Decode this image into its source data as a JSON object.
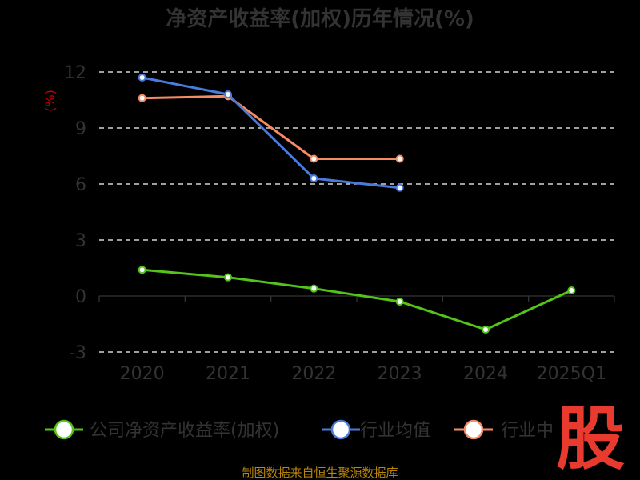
{
  "chart_data": {
    "type": "line",
    "title": "净资产收益率(加权)历年情况(%)",
    "ylabel": "(%)",
    "categories": [
      "2020",
      "2021",
      "2022",
      "2023",
      "2024",
      "2025Q1"
    ],
    "yticks": [
      "12",
      "9",
      "6",
      "3",
      "0",
      "-3"
    ],
    "ylim": [
      -3,
      12
    ],
    "grid": true,
    "legend_position": "bottom",
    "series": [
      {
        "name": "公司净资产收益率(加权)",
        "color": "#52c41a",
        "values": [
          1.4,
          1.0,
          0.4,
          -0.3,
          -1.8,
          0.3
        ]
      },
      {
        "name": "行业均值",
        "color": "#4a7bdc",
        "values": [
          11.7,
          10.8,
          6.3,
          5.8,
          null,
          null
        ]
      },
      {
        "name": "行业中位数",
        "color": "#f58a63",
        "values": [
          10.6,
          10.7,
          7.35,
          7.35,
          null,
          null
        ]
      }
    ],
    "legend_labels": [
      "公司净资产收益率(加权)",
      "行业均值",
      "行业中"
    ]
  },
  "source": "制图数据来自恒生聚源数据库",
  "logo": {
    "text": "股",
    "color": "#e83a2e"
  }
}
